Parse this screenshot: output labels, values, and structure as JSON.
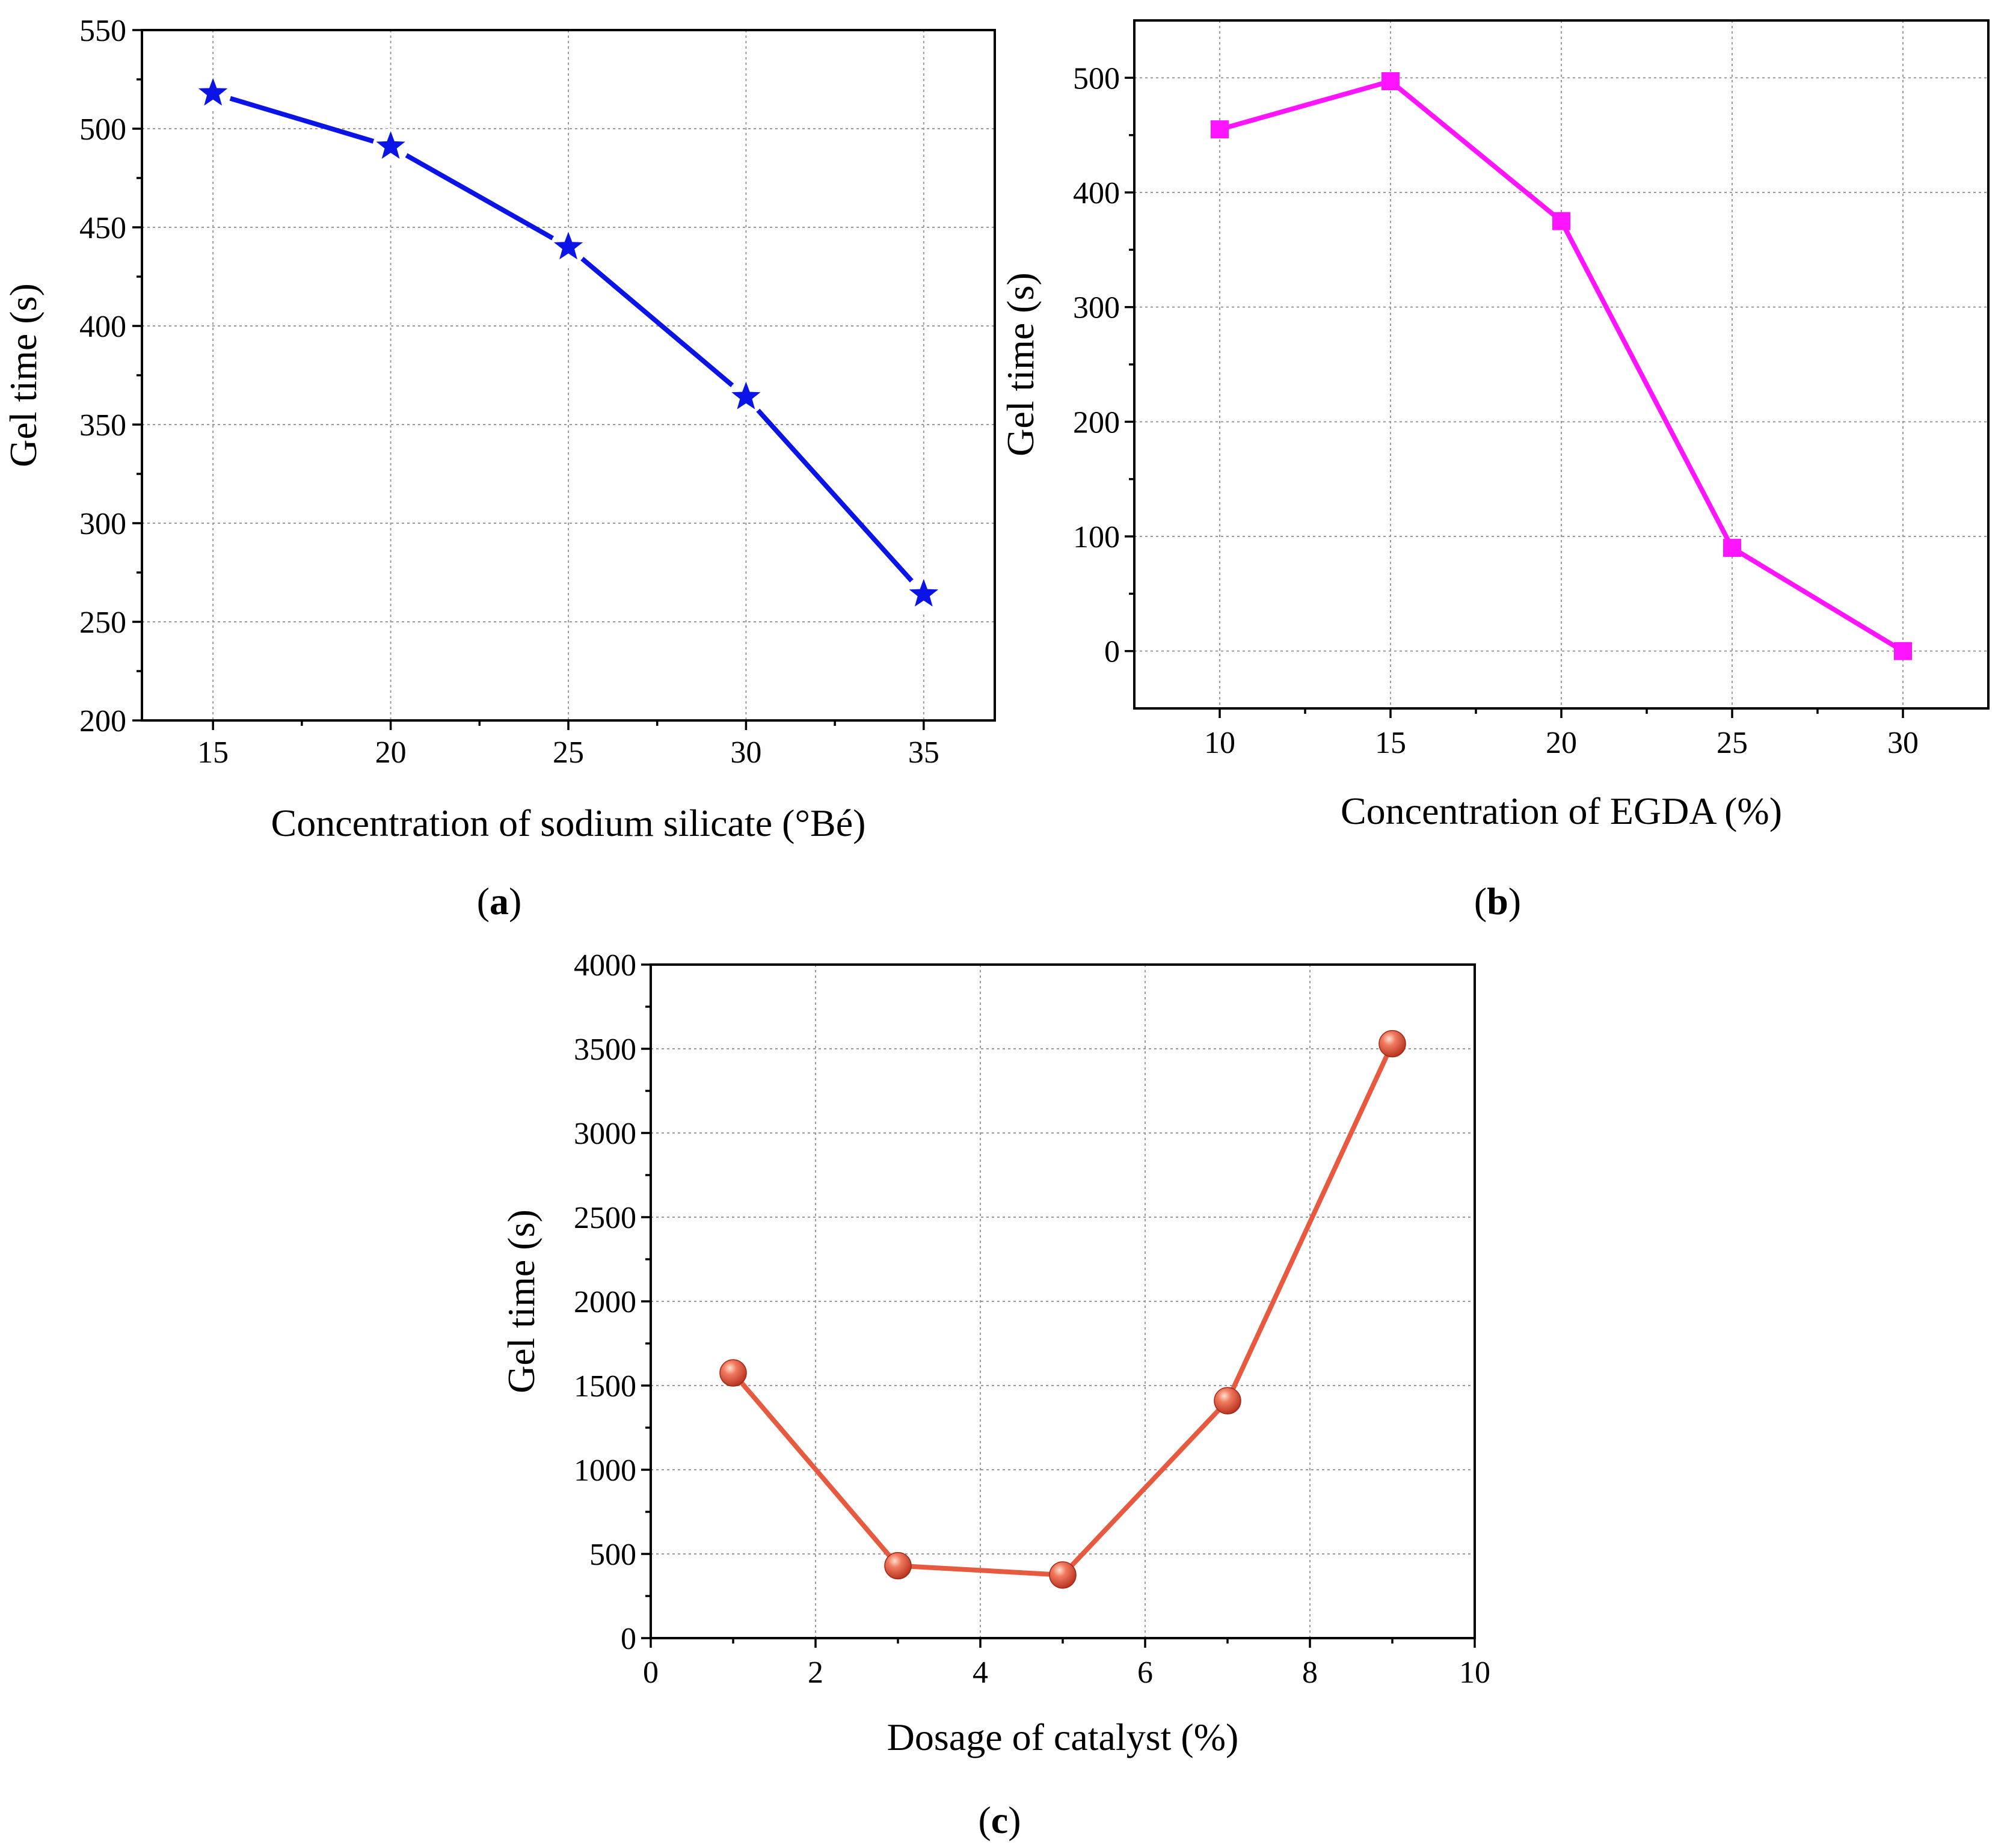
{
  "chart_data": [
    {
      "panel": "a",
      "caption": "(a)",
      "caption_letter": "a",
      "type": "line",
      "title": "",
      "xlabel": "Concentration of sodium silicate (°Bé)",
      "ylabel": "Gel time (s)",
      "xlim": [
        13,
        37
      ],
      "ylim": [
        200,
        550
      ],
      "xticks": [
        15,
        20,
        25,
        30,
        35
      ],
      "xminor": [
        17.5,
        22.5,
        27.5,
        32.5
      ],
      "yticks": [
        200,
        250,
        300,
        350,
        400,
        450,
        500,
        550
      ],
      "yminor": [
        225,
        275,
        325,
        375,
        425,
        475,
        525
      ],
      "grid": true,
      "marker": "star",
      "color": "#0a14e6",
      "series": [
        {
          "name": "Gel time",
          "x": [
            15,
            20,
            25,
            30,
            35
          ],
          "values": [
            518,
            491,
            440,
            364,
            264
          ]
        }
      ]
    },
    {
      "panel": "b",
      "caption": "(b)",
      "caption_letter": "b",
      "type": "line",
      "title": "",
      "xlabel": "Concentration of EGDA (%)",
      "ylabel": "Gel time (s)",
      "xlim": [
        7.5,
        32.5
      ],
      "ylim": [
        -50,
        550
      ],
      "xticks": [
        10,
        15,
        20,
        25,
        30
      ],
      "xminor": [
        12.5,
        17.5,
        22.5,
        27.5
      ],
      "yticks": [
        0,
        100,
        200,
        300,
        400,
        500
      ],
      "yminor": [
        50,
        150,
        250,
        350,
        450
      ],
      "grid": true,
      "marker": "square",
      "color": "#ff14ff",
      "series": [
        {
          "name": "Gel time",
          "x": [
            10,
            15,
            20,
            25,
            30
          ],
          "values": [
            455,
            497,
            375,
            90,
            0
          ]
        }
      ]
    },
    {
      "panel": "c",
      "caption": "(c)",
      "caption_letter": "c",
      "type": "line",
      "title": "",
      "xlabel": "Dosage of catalyst (%)",
      "ylabel": "Gel time (s)",
      "xlim": [
        0,
        10
      ],
      "ylim": [
        0,
        4000
      ],
      "xticks": [
        0,
        2,
        4,
        6,
        8,
        10
      ],
      "xminor": [
        1,
        3,
        5,
        7,
        9
      ],
      "yticks": [
        0,
        500,
        1000,
        1500,
        2000,
        2500,
        3000,
        3500,
        4000
      ],
      "yminor": [
        250,
        750,
        1250,
        1750,
        2250,
        2750,
        3250,
        3750
      ],
      "grid": true,
      "marker": "sphere",
      "color": "#e85a40",
      "series": [
        {
          "name": "Gel time",
          "x": [
            1,
            3,
            5,
            7,
            9
          ],
          "values": [
            1575,
            430,
            375,
            1410,
            3530
          ]
        }
      ]
    }
  ]
}
